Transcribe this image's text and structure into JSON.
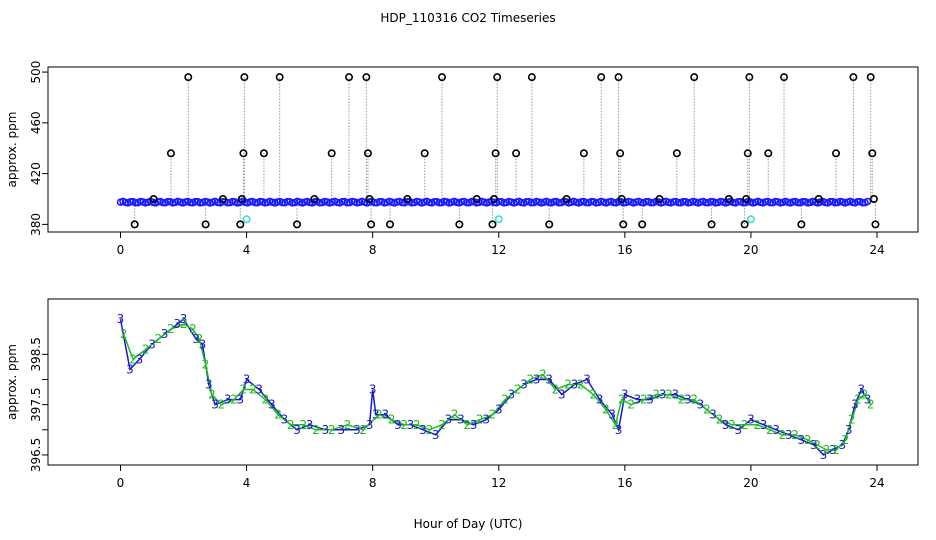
{
  "title": "HDP_110316  CO2 Timeseries",
  "xlabel": "Hour of Day (UTC)",
  "colors": {
    "raw_point": "#000000",
    "raw_line": "#999999",
    "mean": "#1a1aff",
    "flag": "#40e0d0",
    "series2": "#22bb22",
    "series3": "#1a1acc"
  },
  "chart_data": [
    {
      "type": "scatter",
      "title": "HDP_110316  CO2 Timeseries",
      "ylabel": "approx. ppm",
      "xlim": [
        -2.3,
        25.3
      ],
      "ylim": [
        374,
        504
      ],
      "xticks": [
        0,
        4,
        8,
        12,
        16,
        20,
        24
      ],
      "yticks": [
        380,
        420,
        460,
        500
      ],
      "yticks_labeled": [
        380,
        420,
        460,
        500
      ],
      "baseline_mean": 397.5,
      "mean_series_x_range": [
        0,
        23.7
      ],
      "raw_points": [
        {
          "x": 0.45,
          "y": 380
        },
        {
          "x": 1.05,
          "y": 400
        },
        {
          "x": 1.6,
          "y": 436
        },
        {
          "x": 2.15,
          "y": 496
        },
        {
          "x": 2.7,
          "y": 380
        },
        {
          "x": 3.25,
          "y": 400
        },
        {
          "x": 3.8,
          "y": 380
        },
        {
          "x": 3.85,
          "y": 400
        },
        {
          "x": 3.9,
          "y": 436
        },
        {
          "x": 3.93,
          "y": 496
        },
        {
          "x": 4.55,
          "y": 436
        },
        {
          "x": 5.05,
          "y": 496
        },
        {
          "x": 5.6,
          "y": 380
        },
        {
          "x": 6.15,
          "y": 400
        },
        {
          "x": 6.7,
          "y": 436
        },
        {
          "x": 7.25,
          "y": 496
        },
        {
          "x": 7.8,
          "y": 496
        },
        {
          "x": 7.85,
          "y": 436
        },
        {
          "x": 7.9,
          "y": 400
        },
        {
          "x": 7.95,
          "y": 380
        },
        {
          "x": 8.55,
          "y": 380
        },
        {
          "x": 9.1,
          "y": 400
        },
        {
          "x": 9.65,
          "y": 436
        },
        {
          "x": 10.2,
          "y": 496
        },
        {
          "x": 10.75,
          "y": 380
        },
        {
          "x": 11.3,
          "y": 400
        },
        {
          "x": 11.8,
          "y": 380
        },
        {
          "x": 11.85,
          "y": 400
        },
        {
          "x": 11.9,
          "y": 436
        },
        {
          "x": 11.95,
          "y": 496
        },
        {
          "x": 12.55,
          "y": 436
        },
        {
          "x": 13.05,
          "y": 496
        },
        {
          "x": 13.6,
          "y": 380
        },
        {
          "x": 14.15,
          "y": 400
        },
        {
          "x": 14.7,
          "y": 436
        },
        {
          "x": 15.25,
          "y": 496
        },
        {
          "x": 15.8,
          "y": 496
        },
        {
          "x": 15.85,
          "y": 436
        },
        {
          "x": 15.9,
          "y": 400
        },
        {
          "x": 15.95,
          "y": 380
        },
        {
          "x": 16.55,
          "y": 380
        },
        {
          "x": 17.1,
          "y": 400
        },
        {
          "x": 17.65,
          "y": 436
        },
        {
          "x": 18.2,
          "y": 496
        },
        {
          "x": 18.75,
          "y": 380
        },
        {
          "x": 19.3,
          "y": 400
        },
        {
          "x": 19.8,
          "y": 380
        },
        {
          "x": 19.85,
          "y": 400
        },
        {
          "x": 19.9,
          "y": 436
        },
        {
          "x": 19.95,
          "y": 496
        },
        {
          "x": 20.55,
          "y": 436
        },
        {
          "x": 21.05,
          "y": 496
        },
        {
          "x": 21.6,
          "y": 380
        },
        {
          "x": 22.15,
          "y": 400
        },
        {
          "x": 22.7,
          "y": 436
        },
        {
          "x": 23.25,
          "y": 496
        },
        {
          "x": 23.8,
          "y": 496
        },
        {
          "x": 23.85,
          "y": 436
        },
        {
          "x": 23.9,
          "y": 400
        },
        {
          "x": 23.95,
          "y": 380
        }
      ],
      "flagged_points": [
        {
          "x": 4.0,
          "y": 384
        },
        {
          "x": 12.0,
          "y": 384
        },
        {
          "x": 20.0,
          "y": 384
        }
      ]
    },
    {
      "type": "line",
      "ylabel": "approx. ppm",
      "xlim": [
        -2.3,
        25.3
      ],
      "ylim": [
        396.3,
        399.6
      ],
      "xticks": [
        0,
        4,
        8,
        12,
        16,
        20,
        24
      ],
      "yticks": [
        396.5,
        397.0,
        397.5,
        398.0,
        398.5
      ],
      "yticks_labeled": [
        396.5,
        397.5,
        398.5
      ],
      "point_labels": [
        "2",
        "3"
      ],
      "series": [
        {
          "name": "3",
          "x": [
            0,
            0.3,
            0.6,
            1.0,
            1.4,
            1.8,
            2.0,
            2.4,
            2.6,
            2.8,
            3.0,
            3.4,
            3.8,
            4.0,
            4.4,
            4.8,
            5.2,
            5.6,
            6.0,
            6.5,
            7.0,
            7.5,
            7.9,
            8.0,
            8.1,
            8.4,
            8.8,
            9.2,
            9.6,
            10.0,
            10.4,
            10.8,
            11.2,
            11.6,
            12.0,
            12.4,
            12.8,
            13.2,
            13.6,
            14.0,
            14.4,
            14.8,
            15.2,
            15.6,
            15.8,
            16.0,
            16.4,
            16.8,
            17.2,
            17.6,
            18.0,
            18.4,
            18.8,
            19.2,
            19.6,
            20.0,
            20.4,
            20.8,
            21.2,
            21.6,
            22.0,
            22.3,
            22.6,
            22.9,
            23.1,
            23.3,
            23.5,
            23.7
          ],
          "y": [
            399.2,
            398.2,
            398.4,
            398.7,
            398.9,
            399.1,
            399.2,
            398.8,
            398.7,
            397.9,
            397.5,
            397.6,
            397.6,
            398.0,
            397.8,
            397.5,
            397.2,
            397.0,
            397.1,
            397.0,
            397.0,
            397.0,
            397.1,
            397.8,
            397.3,
            397.3,
            397.1,
            397.1,
            397.0,
            396.9,
            397.2,
            397.2,
            397.1,
            397.2,
            397.4,
            397.7,
            397.9,
            398.0,
            398.0,
            397.7,
            397.9,
            398.0,
            397.6,
            397.3,
            397.0,
            397.7,
            397.6,
            397.6,
            397.7,
            397.7,
            397.6,
            397.5,
            397.3,
            397.1,
            397.0,
            397.2,
            397.1,
            397.0,
            396.9,
            396.8,
            396.7,
            396.5,
            396.6,
            396.7,
            397.0,
            397.5,
            397.8,
            397.6
          ]
        },
        {
          "name": "2",
          "x": [
            0.1,
            0.4,
            0.8,
            1.2,
            1.6,
            2.0,
            2.3,
            2.5,
            2.7,
            2.9,
            3.2,
            3.6,
            3.9,
            4.2,
            4.6,
            5.0,
            5.4,
            5.8,
            6.2,
            6.7,
            7.2,
            7.7,
            8.2,
            8.6,
            9.0,
            9.4,
            9.8,
            10.2,
            10.6,
            11.0,
            11.4,
            11.8,
            12.2,
            12.6,
            13.0,
            13.4,
            13.8,
            14.2,
            14.6,
            15.0,
            15.4,
            15.7,
            15.9,
            16.2,
            16.6,
            17.0,
            17.4,
            17.8,
            18.2,
            18.6,
            19.0,
            19.4,
            19.8,
            20.2,
            20.6,
            21.0,
            21.4,
            21.8,
            22.1,
            22.4,
            22.7,
            23.0,
            23.2,
            23.4,
            23.6,
            23.8
          ],
          "y": [
            398.9,
            398.4,
            398.6,
            398.8,
            399.0,
            399.1,
            399.0,
            398.8,
            398.3,
            397.7,
            397.5,
            397.6,
            397.8,
            397.8,
            397.6,
            397.3,
            397.1,
            397.1,
            397.0,
            397.0,
            397.1,
            397.0,
            397.3,
            397.2,
            397.1,
            397.1,
            397.0,
            397.1,
            397.3,
            397.1,
            397.2,
            397.3,
            397.6,
            397.8,
            398.0,
            398.1,
            397.8,
            397.9,
            397.9,
            397.7,
            397.4,
            397.1,
            397.6,
            397.5,
            397.6,
            397.7,
            397.7,
            397.6,
            397.6,
            397.4,
            397.2,
            397.1,
            397.1,
            397.1,
            397.0,
            396.9,
            396.9,
            396.8,
            396.7,
            396.6,
            396.6,
            396.8,
            397.2,
            397.6,
            397.7,
            397.5
          ]
        }
      ]
    }
  ]
}
